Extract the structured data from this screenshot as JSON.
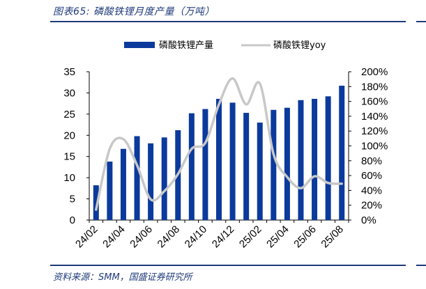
{
  "figure": {
    "title": "图表65:  磷酸铁锂月度产量（万吨）",
    "source": "资料来源：SMM，国盛证券研究所"
  },
  "colors": {
    "bar": "#0b3a9c",
    "line": "#c8c8c8",
    "rule": "#1f3a7a"
  },
  "chart_data": {
    "type": "bar",
    "categories": [
      "24/02",
      "24/03",
      "24/04",
      "24/05",
      "24/06",
      "24/07",
      "24/08",
      "24/09",
      "24/10",
      "24/11",
      "24/12",
      "25/01",
      "25/02",
      "25/03",
      "25/04",
      "25/05",
      "25/06",
      "25/07",
      "25/08"
    ],
    "x_tick_labels": [
      "24/02",
      "24/04",
      "24/06",
      "24/08",
      "24/10",
      "24/12",
      "25/02",
      "25/04",
      "25/06",
      "25/08"
    ],
    "series": [
      {
        "name": "磷酸铁锂产量",
        "type": "bar",
        "axis": "left",
        "values": [
          8.2,
          13.8,
          16.8,
          19.8,
          18.1,
          19.5,
          21.2,
          25.2,
          26.2,
          28.6,
          27.7,
          25.3,
          23.0,
          26.0,
          26.5,
          28.3,
          28.6,
          29.2,
          31.7
        ]
      },
      {
        "name": "磷酸铁锂yoy",
        "type": "line",
        "axis": "right",
        "values": [
          0.14,
          0.96,
          1.09,
          0.74,
          0.28,
          0.39,
          0.62,
          0.96,
          1.04,
          1.56,
          1.91,
          1.56,
          1.84,
          0.89,
          0.58,
          0.43,
          0.59,
          0.5,
          0.49
        ]
      }
    ],
    "y_left": {
      "min": 0,
      "max": 35,
      "ticks": [
        "0",
        "5",
        "10",
        "15",
        "20",
        "25",
        "30",
        "35"
      ]
    },
    "y_right": {
      "min": 0,
      "max": 2.0,
      "ticks": [
        "0%",
        "20%",
        "40%",
        "60%",
        "80%",
        "100%",
        "120%",
        "140%",
        "160%",
        "180%",
        "200%"
      ]
    },
    "legend_position": "top-center",
    "grid": false
  }
}
